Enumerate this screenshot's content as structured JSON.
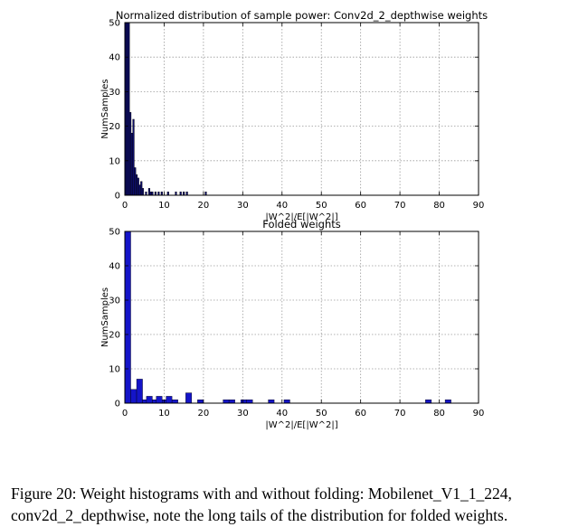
{
  "chart_data": [
    {
      "type": "bar",
      "title": "Normalized distribution of sample power: Conv2d_2_depthwise weights",
      "xlabel": "|W^2|/E[|W^2|]",
      "ylabel": "NumSamples",
      "xlim": [
        0,
        90
      ],
      "ylim": [
        0,
        50
      ],
      "xticks": [
        0,
        10,
        20,
        30,
        40,
        50,
        60,
        70,
        80,
        90
      ],
      "yticks": [
        0,
        10,
        20,
        30,
        40,
        50
      ],
      "grid": true,
      "bin_width": 0.4,
      "color": "#0d0d6b",
      "bins": [
        [
          0.0,
          50
        ],
        [
          0.4,
          50
        ],
        [
          0.8,
          50
        ],
        [
          1.2,
          24
        ],
        [
          1.6,
          18
        ],
        [
          2.0,
          22
        ],
        [
          2.4,
          8
        ],
        [
          2.8,
          6
        ],
        [
          3.2,
          5
        ],
        [
          3.6,
          3
        ],
        [
          4.0,
          4
        ],
        [
          4.4,
          2
        ],
        [
          5.2,
          1
        ],
        [
          6.0,
          2
        ],
        [
          6.4,
          1
        ],
        [
          6.8,
          1
        ],
        [
          7.6,
          1
        ],
        [
          8.4,
          1
        ],
        [
          9.2,
          1
        ],
        [
          10.8,
          1
        ],
        [
          12.8,
          1
        ],
        [
          14.0,
          1
        ],
        [
          14.8,
          1
        ],
        [
          15.6,
          1
        ],
        [
          20.4,
          1
        ]
      ]
    },
    {
      "type": "bar",
      "title": "Folded weights",
      "xlabel": "|W^2|/E[|W^2|]",
      "ylabel": "NumSamples",
      "xlim": [
        0,
        90
      ],
      "ylim": [
        0,
        50
      ],
      "xticks": [
        0,
        10,
        20,
        30,
        40,
        50,
        60,
        70,
        80,
        90
      ],
      "yticks": [
        0,
        10,
        20,
        30,
        40,
        50
      ],
      "grid": true,
      "bin_width": 1.5,
      "color": "#1414c8",
      "bins": [
        [
          0.0,
          50
        ],
        [
          1.5,
          4
        ],
        [
          3.0,
          7
        ],
        [
          4.5,
          1
        ],
        [
          5.5,
          2
        ],
        [
          7.0,
          1
        ],
        [
          8.0,
          2
        ],
        [
          9.5,
          1
        ],
        [
          10.5,
          2
        ],
        [
          12.0,
          1
        ],
        [
          15.5,
          3
        ],
        [
          18.5,
          1
        ],
        [
          25.0,
          1
        ],
        [
          26.5,
          1
        ],
        [
          29.5,
          1
        ],
        [
          31.0,
          1
        ],
        [
          36.5,
          1
        ],
        [
          40.5,
          1
        ],
        [
          76.5,
          1
        ],
        [
          81.5,
          1
        ]
      ]
    }
  ],
  "caption": {
    "line1": "Figure 20:  Weight histograms with and without folding:  Mobilenet_V1_1_224,",
    "line2": "conv2d_2_depthwise, note the long tails of the distribution for folded weights."
  }
}
